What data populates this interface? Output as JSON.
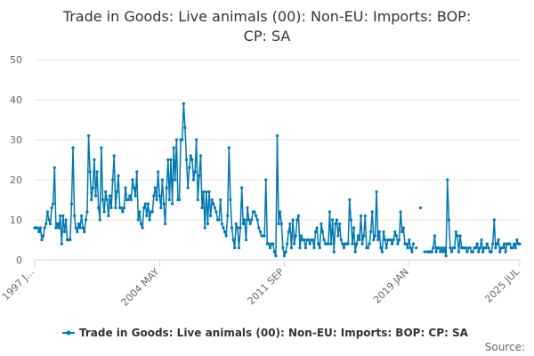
{
  "chart_data": {
    "type": "line",
    "title_lines": [
      "Trade in Goods: Live animals (00): Non-EU: Imports: BOP:",
      "CP: SA"
    ],
    "x_tick_labels": [
      "1997 J...",
      "2004 MAY",
      "2011 SEP",
      "2019 JAN",
      "2025 JUL"
    ],
    "x_tick_index": [
      0,
      88,
      176,
      264,
      342
    ],
    "y_ticks": [
      0,
      10,
      20,
      30,
      40,
      50
    ],
    "ylim": [
      0,
      50
    ],
    "series": [
      {
        "name": "Trade in Goods: Live animals (00): Non-EU: Imports: BOP: CP: SA",
        "color": "#0077b0",
        "values": [
          8,
          8,
          8,
          7,
          8,
          5,
          6,
          8,
          9,
          12,
          10,
          9,
          13,
          14,
          23,
          8,
          9,
          8,
          11,
          4,
          11,
          7,
          10,
          5,
          5,
          5,
          14,
          28,
          11,
          8,
          7,
          9,
          8,
          11,
          8,
          7,
          10,
          12,
          31,
          22,
          15,
          18,
          25,
          16,
          22,
          13,
          10,
          28,
          15,
          12,
          17,
          15,
          11,
          16,
          13,
          20,
          26,
          13,
          17,
          21,
          13,
          13,
          12,
          13,
          18,
          15,
          15,
          16,
          15,
          20,
          18,
          16,
          22,
          10,
          12,
          9,
          8,
          13,
          14,
          11,
          14,
          10,
          12,
          12,
          16,
          18,
          15,
          22,
          16,
          13,
          20,
          14,
          9,
          18,
          25,
          15,
          25,
          14,
          28,
          20,
          30,
          15,
          15,
          30,
          30,
          39,
          33,
          25,
          18,
          23,
          26,
          25,
          20,
          22,
          30,
          15,
          21,
          26,
          13,
          17,
          8,
          17,
          9,
          17,
          11,
          15,
          14,
          13,
          12,
          10,
          10,
          15,
          9,
          8,
          7,
          6,
          11,
          28,
          15,
          8,
          5,
          3,
          9,
          8,
          3,
          8,
          18,
          9,
          10,
          5,
          13,
          10,
          9,
          10,
          12,
          12,
          11,
          10,
          8,
          7,
          6,
          6,
          6,
          20,
          4,
          4,
          3,
          4,
          4,
          2,
          1,
          31,
          9,
          12,
          9,
          3,
          1,
          2,
          4,
          7,
          9,
          3,
          10,
          4,
          6,
          10,
          11,
          3,
          6,
          5,
          5,
          3,
          5,
          5,
          4,
          5,
          5,
          3,
          7,
          8,
          4,
          3,
          9,
          7,
          5,
          4,
          4,
          4,
          12,
          4,
          10,
          2,
          9,
          10,
          6,
          9,
          5,
          4,
          3,
          4,
          4,
          4,
          15,
          10,
          4,
          8,
          2,
          4,
          6,
          5,
          11,
          4,
          6,
          11,
          3,
          3,
          4,
          7,
          12,
          5,
          6,
          17,
          5,
          7,
          3,
          2,
          7,
          5,
          3,
          5,
          5,
          5,
          4,
          5,
          7,
          6,
          4,
          5,
          12,
          7,
          8,
          4,
          4,
          3,
          5,
          3,
          2,
          4,
          null,
          3,
          null,
          null,
          13,
          null,
          null,
          2,
          null,
          2,
          2,
          2,
          2,
          3,
          6,
          2,
          3,
          3,
          2,
          3,
          2,
          3,
          1,
          20,
          10,
          3,
          2,
          3,
          3,
          7,
          6,
          2,
          6,
          3,
          3,
          3,
          3,
          2,
          3,
          3,
          2,
          2,
          3,
          3,
          4,
          2,
          3,
          5,
          2,
          3,
          3,
          4,
          3,
          2,
          2,
          4,
          10,
          3,
          4,
          5,
          2,
          3,
          3,
          4,
          2,
          4,
          4,
          4,
          3,
          3,
          4,
          3,
          5,
          4,
          4
        ]
      }
    ],
    "legend_position": "bottom-center",
    "credit": "Source:"
  }
}
